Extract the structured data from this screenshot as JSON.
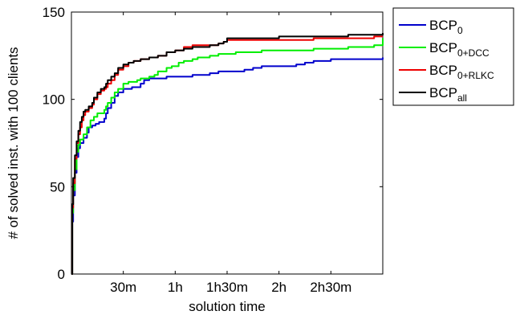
{
  "chart_data": {
    "type": "line",
    "title": "",
    "xlabel": "solution time",
    "ylabel": "# of solved inst. with 100 clients",
    "x_unit": "minutes",
    "xlim": [
      0,
      180
    ],
    "ylim": [
      0,
      150
    ],
    "x_ticks": [
      {
        "value": 30,
        "label": "30m"
      },
      {
        "value": 60,
        "label": "1h"
      },
      {
        "value": 90,
        "label": "1h30m"
      },
      {
        "value": 120,
        "label": "2h"
      },
      {
        "value": 150,
        "label": "2h30m"
      }
    ],
    "y_ticks": [
      {
        "value": 0,
        "label": "0"
      },
      {
        "value": 50,
        "label": "50"
      },
      {
        "value": 100,
        "label": "100"
      },
      {
        "value": 150,
        "label": "150"
      }
    ],
    "grid": false,
    "legend_placement": "outside-right-top",
    "series": [
      {
        "name": "BCP",
        "sub": "0",
        "color": "#0000cc",
        "points": [
          [
            0,
            0
          ],
          [
            0.5,
            30
          ],
          [
            1,
            45
          ],
          [
            2,
            58
          ],
          [
            3,
            67
          ],
          [
            4,
            72
          ],
          [
            5,
            75
          ],
          [
            7,
            78
          ],
          [
            9,
            81
          ],
          [
            10,
            84
          ],
          [
            12,
            85
          ],
          [
            14,
            86
          ],
          [
            16,
            87
          ],
          [
            18,
            87
          ],
          [
            19,
            89
          ],
          [
            20,
            92
          ],
          [
            21,
            95
          ],
          [
            23,
            98
          ],
          [
            25,
            102
          ],
          [
            27,
            104
          ],
          [
            30,
            106
          ],
          [
            35,
            107
          ],
          [
            40,
            109
          ],
          [
            42,
            111
          ],
          [
            45,
            112
          ],
          [
            50,
            112
          ],
          [
            55,
            113
          ],
          [
            60,
            113
          ],
          [
            70,
            114
          ],
          [
            80,
            115
          ],
          [
            85,
            116
          ],
          [
            90,
            116
          ],
          [
            100,
            117
          ],
          [
            105,
            118
          ],
          [
            110,
            119
          ],
          [
            120,
            119
          ],
          [
            130,
            120
          ],
          [
            135,
            121
          ],
          [
            140,
            122
          ],
          [
            150,
            123
          ],
          [
            165,
            123
          ],
          [
            180,
            124
          ]
        ]
      },
      {
        "name": "BCP",
        "sub": "0+DCC",
        "color": "#00ee00",
        "points": [
          [
            0,
            0
          ],
          [
            0.5,
            35
          ],
          [
            1,
            48
          ],
          [
            2,
            60
          ],
          [
            3,
            70
          ],
          [
            4,
            74
          ],
          [
            5,
            77
          ],
          [
            7,
            80
          ],
          [
            9,
            84
          ],
          [
            11,
            88
          ],
          [
            13,
            90
          ],
          [
            15,
            92
          ],
          [
            17,
            92
          ],
          [
            19,
            94
          ],
          [
            20,
            96
          ],
          [
            21,
            98
          ],
          [
            23,
            101
          ],
          [
            25,
            104
          ],
          [
            27,
            106
          ],
          [
            30,
            109
          ],
          [
            33,
            110
          ],
          [
            38,
            111
          ],
          [
            40,
            112
          ],
          [
            45,
            113
          ],
          [
            48,
            114
          ],
          [
            50,
            116
          ],
          [
            55,
            118
          ],
          [
            58,
            119
          ],
          [
            62,
            121
          ],
          [
            65,
            122
          ],
          [
            70,
            123
          ],
          [
            73,
            124
          ],
          [
            78,
            124
          ],
          [
            80,
            125
          ],
          [
            85,
            126
          ],
          [
            90,
            126
          ],
          [
            95,
            127
          ],
          [
            100,
            127
          ],
          [
            110,
            128
          ],
          [
            120,
            128
          ],
          [
            140,
            129
          ],
          [
            160,
            130
          ],
          [
            175,
            131
          ],
          [
            180,
            135
          ]
        ]
      },
      {
        "name": "BCP",
        "sub": "0+RLKC",
        "color": "#ee0000",
        "points": [
          [
            0,
            0
          ],
          [
            0.5,
            38
          ],
          [
            1,
            52
          ],
          [
            2,
            66
          ],
          [
            3,
            75
          ],
          [
            4,
            80
          ],
          [
            5,
            84
          ],
          [
            6,
            88
          ],
          [
            7,
            91
          ],
          [
            8,
            93
          ],
          [
            10,
            95
          ],
          [
            12,
            97
          ],
          [
            13,
            100
          ],
          [
            15,
            103
          ],
          [
            17,
            105
          ],
          [
            19,
            106
          ],
          [
            20,
            107
          ],
          [
            21,
            109
          ],
          [
            23,
            111
          ],
          [
            25,
            114
          ],
          [
            27,
            117
          ],
          [
            30,
            119
          ],
          [
            33,
            121
          ],
          [
            36,
            122
          ],
          [
            40,
            123
          ],
          [
            45,
            124
          ],
          [
            50,
            125
          ],
          [
            55,
            127
          ],
          [
            60,
            128
          ],
          [
            65,
            130
          ],
          [
            70,
            131
          ],
          [
            80,
            131
          ],
          [
            85,
            132
          ],
          [
            88,
            133
          ],
          [
            90,
            134
          ],
          [
            100,
            134
          ],
          [
            120,
            134
          ],
          [
            140,
            135
          ],
          [
            160,
            135
          ],
          [
            175,
            136
          ],
          [
            180,
            136
          ]
        ]
      },
      {
        "name": "BCP",
        "sub": "all",
        "color": "#000000",
        "points": [
          [
            0,
            0
          ],
          [
            0.5,
            40
          ],
          [
            1,
            55
          ],
          [
            2,
            68
          ],
          [
            3,
            76
          ],
          [
            4,
            82
          ],
          [
            5,
            87
          ],
          [
            6,
            90
          ],
          [
            7,
            93
          ],
          [
            8,
            94
          ],
          [
            10,
            96
          ],
          [
            12,
            98
          ],
          [
            13,
            101
          ],
          [
            15,
            104
          ],
          [
            17,
            106
          ],
          [
            19,
            107
          ],
          [
            20,
            109
          ],
          [
            21,
            111
          ],
          [
            23,
            113
          ],
          [
            25,
            115
          ],
          [
            27,
            118
          ],
          [
            30,
            120
          ],
          [
            33,
            121
          ],
          [
            36,
            122
          ],
          [
            40,
            123
          ],
          [
            45,
            124
          ],
          [
            50,
            125
          ],
          [
            55,
            127
          ],
          [
            60,
            128
          ],
          [
            65,
            129
          ],
          [
            70,
            130
          ],
          [
            80,
            131
          ],
          [
            85,
            132
          ],
          [
            88,
            133
          ],
          [
            90,
            135
          ],
          [
            100,
            135
          ],
          [
            120,
            136
          ],
          [
            140,
            136
          ],
          [
            160,
            137
          ],
          [
            175,
            137
          ],
          [
            180,
            138
          ]
        ]
      }
    ]
  }
}
